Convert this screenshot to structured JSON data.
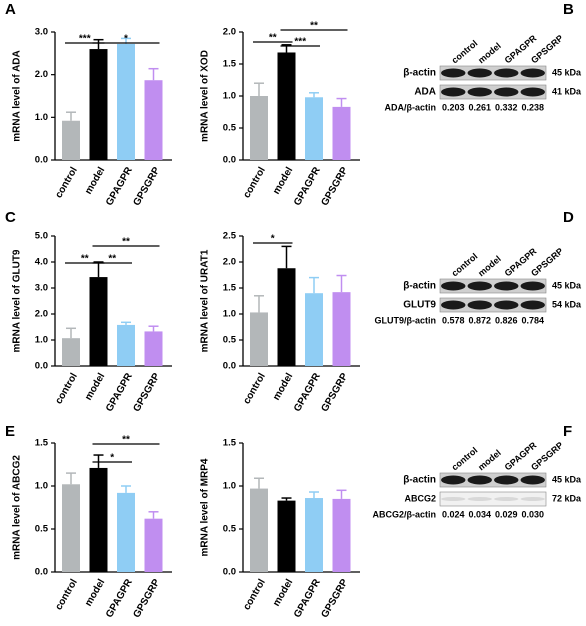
{
  "panels": [
    "A",
    "B",
    "C",
    "D",
    "E",
    "F"
  ],
  "chart_data": [
    {
      "type": "bar",
      "ylabel": "mRNA level of ADA",
      "categories": [
        "control",
        "model",
        "GPAGPR",
        "GPSGRP"
      ],
      "values": [
        0.92,
        2.6,
        2.72,
        1.87
      ],
      "errors": [
        0.2,
        0.22,
        0.13,
        0.27
      ],
      "colors": [
        "#b3b7b9",
        "#000000",
        "#8fcdf4",
        "#c08ef0"
      ],
      "ylim": [
        0,
        3
      ],
      "yticks": [
        {
          "value": 0,
          "label": "0.0"
        },
        {
          "value": 1,
          "label": "1.0"
        },
        {
          "value": 2,
          "label": "2.0"
        },
        {
          "value": 3,
          "label": "3.0"
        }
      ],
      "annotations": [
        "***",
        "*"
      ]
    },
    {
      "type": "bar",
      "ylabel": "mRNA level of XOD",
      "categories": [
        "control",
        "model",
        "GPAGPR",
        "GPSGRP"
      ],
      "values": [
        1.0,
        1.68,
        0.98,
        0.83
      ],
      "errors": [
        0.2,
        0.12,
        0.07,
        0.13
      ],
      "colors": [
        "#b3b7b9",
        "#000000",
        "#8fcdf4",
        "#c08ef0"
      ],
      "ylim": [
        0,
        2
      ],
      "yticks": [
        {
          "value": 0,
          "label": "0.0"
        },
        0.5,
        {
          "value": 1,
          "label": "1.0"
        },
        1.5,
        {
          "value": 2,
          "label": "2.0"
        }
      ],
      "annotations": [
        "**",
        "**",
        "***"
      ]
    },
    {
      "type": "bar",
      "ylabel": "mRNA level of GLUT9",
      "categories": [
        "control",
        "model",
        "GPAGPR",
        "GPSGRP"
      ],
      "values": [
        1.07,
        3.42,
        1.58,
        1.33
      ],
      "errors": [
        0.38,
        0.58,
        0.1,
        0.2
      ],
      "colors": [
        "#b3b7b9",
        "#000000",
        "#8fcdf4",
        "#c08ef0"
      ],
      "ylim": [
        0,
        5
      ],
      "yticks": [
        {
          "value": 0,
          "label": "0.0"
        },
        {
          "value": 1,
          "label": "1.0"
        },
        {
          "value": 2,
          "label": "2.0"
        },
        {
          "value": 3,
          "label": "3.0"
        },
        {
          "value": 4,
          "label": "4.0"
        },
        {
          "value": 5,
          "label": "5.0"
        }
      ],
      "annotations": [
        "**",
        "**",
        "**"
      ]
    },
    {
      "type": "bar",
      "ylabel": "mRNA level of URAT1",
      "categories": [
        "control",
        "model",
        "GPAGPR",
        "GPSGRP"
      ],
      "values": [
        1.03,
        1.88,
        1.4,
        1.42
      ],
      "errors": [
        0.32,
        0.42,
        0.3,
        0.32
      ],
      "colors": [
        "#b3b7b9",
        "#000000",
        "#8fcdf4",
        "#c08ef0"
      ],
      "ylim": [
        0,
        2.5
      ],
      "yticks": [
        {
          "value": 0,
          "label": "0.0"
        },
        0.5,
        {
          "value": 1,
          "label": "1.0"
        },
        1.5,
        {
          "value": 2,
          "label": "2.0"
        },
        2.5
      ],
      "annotations": [
        "*"
      ]
    },
    {
      "type": "bar",
      "ylabel": "mRNA level of ABCG2",
      "categories": [
        "control",
        "model",
        "GPAGPR",
        "GPSGRP"
      ],
      "values": [
        1.02,
        1.21,
        0.92,
        0.62
      ],
      "errors": [
        0.13,
        0.15,
        0.08,
        0.08
      ],
      "colors": [
        "#b3b7b9",
        "#000000",
        "#8fcdf4",
        "#c08ef0"
      ],
      "ylim": [
        0,
        1.5
      ],
      "yticks": [
        {
          "value": 0,
          "label": "0.0"
        },
        0.5,
        {
          "value": 1,
          "label": "1.0"
        },
        1.5
      ],
      "annotations": [
        "*",
        "**"
      ]
    },
    {
      "type": "bar",
      "ylabel": "mRNA level of MRP4",
      "categories": [
        "control",
        "model",
        "GPAGPR",
        "GPSGRP"
      ],
      "values": [
        0.97,
        0.83,
        0.86,
        0.85
      ],
      "errors": [
        0.12,
        0.03,
        0.07,
        0.1
      ],
      "colors": [
        "#b3b7b9",
        "#000000",
        "#8fcdf4",
        "#c08ef0"
      ],
      "ylim": [
        0,
        1.5
      ],
      "yticks": [
        {
          "value": 0,
          "label": "0.0"
        },
        0.5,
        {
          "value": 1,
          "label": "1.0"
        },
        1.5
      ],
      "annotations": []
    }
  ],
  "blots": [
    {
      "lanes": [
        "control",
        "model",
        "GPAGPR",
        "GPSGRP"
      ],
      "rows": [
        {
          "name": "β-actin",
          "kda": "45 kDa"
        },
        {
          "name": "ADA",
          "kda": "41 kDa"
        }
      ],
      "ratio_label": "ADA/β-actin",
      "ratios": [
        "0.203",
        "0.261",
        "0.332",
        "0.238"
      ]
    },
    {
      "lanes": [
        "control",
        "model",
        "GPAGPR",
        "GPSGRP"
      ],
      "rows": [
        {
          "name": "β-actin",
          "kda": "45 kDa"
        },
        {
          "name": "GLUT9",
          "kda": "54 kDa"
        }
      ],
      "ratio_label": "GLUT9/β-actin",
      "ratios": [
        "0.578",
        "0.872",
        "0.826",
        "0.784"
      ]
    },
    {
      "lanes": [
        "control",
        "model",
        "GPAGPR",
        "GPSGRP"
      ],
      "rows": [
        {
          "name": "β-actin",
          "kda": "45 kDa"
        },
        {
          "name": "ABCG2",
          "kda": "72 kDa"
        }
      ],
      "ratio_label": "ABCG2/β-actin",
      "ratios": [
        "0.024",
        "0.034",
        "0.029",
        "0.030"
      ]
    }
  ]
}
